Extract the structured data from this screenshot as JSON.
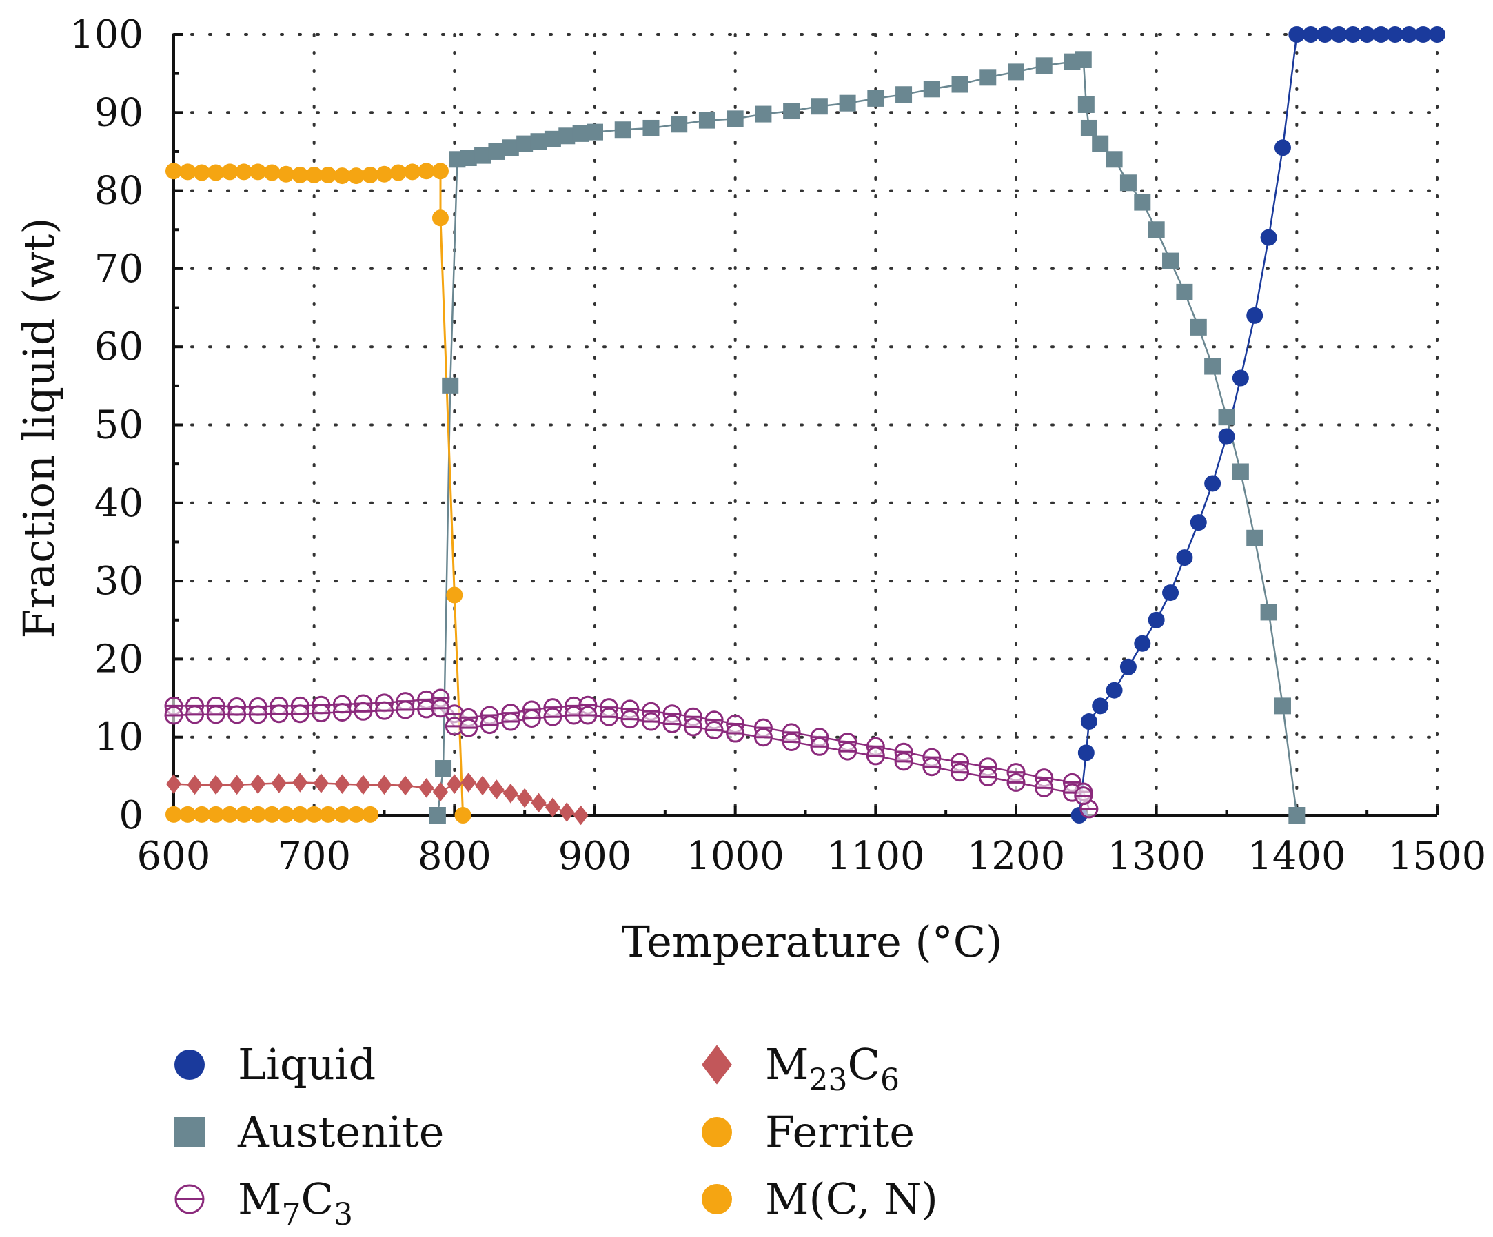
{
  "chart_data": {
    "type": "line",
    "xlabel": "Temperature (°C)",
    "ylabel": "Fraction liquid (wt)",
    "xlim": [
      600,
      1500
    ],
    "ylim": [
      0,
      100
    ],
    "xticks": [
      600,
      700,
      800,
      900,
      1000,
      1100,
      1200,
      1300,
      1400,
      1500
    ],
    "yticks": [
      0,
      10,
      20,
      30,
      40,
      50,
      60,
      70,
      80,
      90,
      100
    ],
    "xtick_labels": [
      "600",
      "700",
      "800",
      "900",
      "1000",
      "1100",
      "1200",
      "1300",
      "1400",
      "1500"
    ],
    "ytick_labels": [
      "0",
      "10",
      "20",
      "30",
      "40",
      "50",
      "60",
      "70",
      "80",
      "90",
      "100"
    ],
    "grid": true,
    "legend_position": "bottom",
    "series": [
      {
        "name": "Liquid",
        "legend": {
          "main": "Liquid",
          "sub": "",
          "tail": ""
        },
        "color": "#1a3a9c",
        "marker": "circle",
        "x": [
          1245,
          1250,
          1252,
          1260,
          1270,
          1280,
          1290,
          1300,
          1310,
          1320,
          1330,
          1340,
          1350,
          1360,
          1370,
          1380,
          1390,
          1400,
          1410,
          1420,
          1430,
          1440,
          1450,
          1460,
          1470,
          1480,
          1490,
          1500
        ],
        "y": [
          0,
          8,
          12,
          14,
          16,
          19,
          22,
          25,
          28.5,
          33,
          37.5,
          42.5,
          48.5,
          56,
          64,
          74,
          85.5,
          100,
          100,
          100,
          100,
          100,
          100,
          100,
          100,
          100,
          100,
          100
        ]
      },
      {
        "name": "Austenite",
        "legend": {
          "main": "Austenite",
          "sub": "",
          "tail": ""
        },
        "color": "#6a8791",
        "marker": "square",
        "x": [
          788,
          792,
          797,
          802,
          810,
          820,
          830,
          840,
          850,
          860,
          870,
          880,
          890,
          900,
          920,
          940,
          960,
          980,
          1000,
          1020,
          1040,
          1060,
          1080,
          1100,
          1120,
          1140,
          1160,
          1180,
          1200,
          1220,
          1240,
          1248,
          1250,
          1252,
          1260,
          1270,
          1280,
          1290,
          1300,
          1310,
          1320,
          1330,
          1340,
          1350,
          1360,
          1370,
          1380,
          1390,
          1400
        ],
        "y": [
          0,
          6,
          55,
          84,
          84.2,
          84.5,
          85,
          85.5,
          86,
          86.3,
          86.6,
          87,
          87.3,
          87.5,
          87.8,
          88,
          88.5,
          89,
          89.2,
          89.8,
          90.2,
          90.8,
          91.2,
          91.8,
          92.3,
          93,
          93.6,
          94.5,
          95.2,
          96,
          96.5,
          96.8,
          91,
          88,
          86,
          84,
          81,
          78.5,
          75,
          71,
          67,
          62.5,
          57.5,
          51,
          44,
          35.5,
          26,
          14,
          0
        ]
      },
      {
        "name": "M7C3 (upper)",
        "legend": {
          "main": "M",
          "sub": "7",
          "tail": "C",
          "sub2": "3"
        },
        "color": "#8b2a7c",
        "marker": "circle-open",
        "x": [
          600,
          615,
          630,
          645,
          660,
          675,
          690,
          705,
          720,
          735,
          750,
          765,
          780,
          790,
          800,
          810,
          825,
          840,
          855,
          870,
          885,
          895,
          910,
          925,
          940,
          955,
          970,
          985,
          1000,
          1020,
          1040,
          1060,
          1080,
          1100,
          1120,
          1140,
          1160,
          1180,
          1200,
          1220,
          1240,
          1248,
          1252
        ],
        "y": [
          14,
          14,
          14,
          13.9,
          13.9,
          14,
          14,
          14.1,
          14.2,
          14.3,
          14.4,
          14.6,
          14.8,
          15,
          13,
          12.5,
          12.8,
          13.1,
          13.5,
          13.8,
          14,
          14.1,
          13.8,
          13.6,
          13.3,
          13,
          12.6,
          12.2,
          11.7,
          11.2,
          10.6,
          10,
          9.4,
          8.8,
          8.1,
          7.4,
          6.8,
          6.2,
          5.5,
          4.8,
          4.2,
          3,
          0.8
        ]
      },
      {
        "name": "M7C3 (lower)",
        "legend": {
          "main": "",
          "sub": "",
          "tail": ""
        },
        "color": "#8b2a7c",
        "marker": "circle-open",
        "x": [
          600,
          615,
          630,
          645,
          660,
          675,
          690,
          705,
          720,
          735,
          750,
          765,
          780,
          790,
          800,
          810,
          825,
          840,
          855,
          870,
          885,
          895,
          910,
          925,
          940,
          955,
          970,
          985,
          1000,
          1020,
          1040,
          1060,
          1080,
          1100,
          1120,
          1140,
          1160,
          1180,
          1200,
          1220,
          1240,
          1248
        ],
        "y": [
          12.8,
          12.9,
          12.9,
          12.9,
          12.9,
          13,
          13,
          13.1,
          13.2,
          13.3,
          13.4,
          13.5,
          13.6,
          13.7,
          11.4,
          11.2,
          11.6,
          12,
          12.4,
          12.6,
          12.8,
          12.8,
          12.6,
          12.3,
          12,
          11.7,
          11.3,
          10.9,
          10.5,
          10,
          9.4,
          8.8,
          8.2,
          7.6,
          6.9,
          6.2,
          5.5,
          4.9,
          4.2,
          3.5,
          2.9,
          2.5
        ]
      },
      {
        "name": "M23C6",
        "legend": {
          "main": "M",
          "sub": "23",
          "tail": "C",
          "sub2": "6"
        },
        "color": "#c2575a",
        "marker": "diamond",
        "x": [
          600,
          615,
          630,
          645,
          660,
          675,
          690,
          705,
          720,
          735,
          750,
          765,
          780,
          790,
          800,
          810,
          820,
          830,
          840,
          850,
          860,
          870,
          880,
          890
        ],
        "y": [
          4,
          3.9,
          3.9,
          3.9,
          4,
          4.1,
          4.2,
          4.1,
          4,
          3.9,
          3.9,
          3.8,
          3.5,
          3,
          4,
          4.2,
          3.8,
          3.3,
          2.8,
          2.2,
          1.6,
          1,
          0.4,
          0
        ]
      },
      {
        "name": "Ferrite",
        "legend": {
          "main": "Ferrite",
          "sub": "",
          "tail": ""
        },
        "color": "#f5a512",
        "marker": "circle",
        "x": [
          600,
          610,
          620,
          630,
          640,
          650,
          660,
          670,
          680,
          690,
          700,
          710,
          720,
          730,
          740,
          750,
          760,
          770,
          780,
          790,
          790,
          800,
          806
        ],
        "y": [
          82.5,
          82.4,
          82.3,
          82.3,
          82.4,
          82.4,
          82.4,
          82.3,
          82.1,
          82,
          82,
          82,
          81.9,
          81.9,
          82,
          82.1,
          82.3,
          82.4,
          82.5,
          82.5,
          76.5,
          28.2,
          0
        ]
      },
      {
        "name": "M(C, N)",
        "legend": {
          "main": "M(C, N)",
          "sub": "",
          "tail": ""
        },
        "color": "#f5a512",
        "marker": "circle",
        "x": [
          600,
          610,
          620,
          630,
          640,
          650,
          660,
          670,
          680,
          690,
          700,
          710,
          720,
          730,
          740
        ],
        "y": [
          0.1,
          0.1,
          0.1,
          0.1,
          0.1,
          0.1,
          0.1,
          0.1,
          0.1,
          0.1,
          0.1,
          0.1,
          0.1,
          0.1,
          0.1
        ]
      }
    ]
  }
}
